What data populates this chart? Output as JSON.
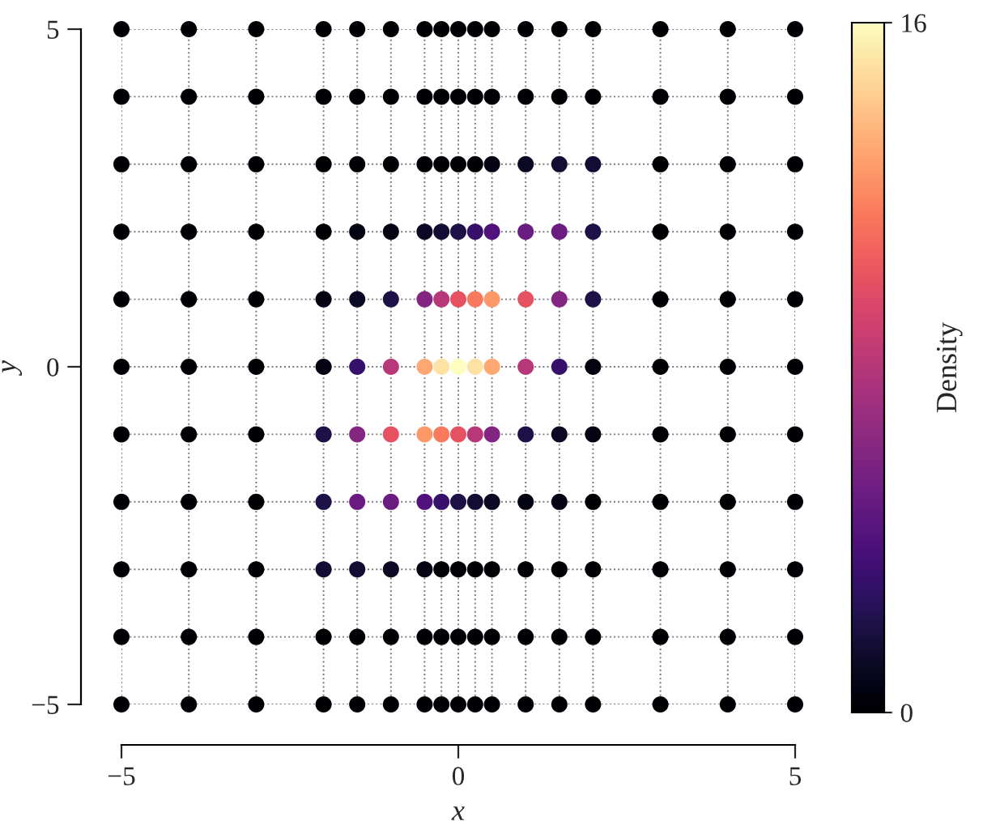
{
  "chart_data": {
    "type": "scatter",
    "xlabel": "x",
    "ylabel": "y",
    "clabel": "Density",
    "xlim": [
      -5,
      5
    ],
    "ylim": [
      -5,
      5
    ],
    "xticks": [
      {
        "value": -5,
        "label": "−5"
      },
      0,
      5
    ],
    "yticks": [
      {
        "value": -5,
        "label": "−5"
      },
      0,
      5
    ],
    "clim": [
      0,
      16
    ],
    "cticks": [
      0,
      16
    ],
    "grid": true,
    "marker": "circle",
    "x": [
      -5,
      -4,
      -3,
      -2,
      -1.5,
      -1,
      -0.5,
      -0.25,
      0,
      0.25,
      0.5,
      1,
      1.5,
      2,
      3,
      4,
      5,
      -5,
      -4,
      -3,
      -2,
      -1.5,
      -1,
      -0.5,
      -0.25,
      0,
      0.25,
      0.5,
      1,
      1.5,
      2,
      3,
      4,
      5,
      -5,
      -4,
      -3,
      -2,
      -1.5,
      -1,
      -0.5,
      -0.25,
      0,
      0.25,
      0.5,
      1,
      1.5,
      2,
      3,
      4,
      5,
      -5,
      -4,
      -3,
      -2,
      -1.5,
      -1,
      -0.5,
      -0.25,
      0,
      0.25,
      0.5,
      1,
      1.5,
      2,
      3,
      4,
      5,
      -5,
      -4,
      -3,
      -2,
      -1.5,
      -1,
      -0.5,
      -0.25,
      0,
      0.25,
      0.5,
      1,
      1.5,
      2,
      3,
      4,
      5,
      -5,
      -4,
      -3,
      -2,
      -1.5,
      -1,
      -0.5,
      -0.25,
      0,
      0.25,
      0.5,
      1,
      1.5,
      2,
      3,
      4,
      5,
      -5,
      -4,
      -3,
      -2,
      -1.5,
      -1,
      -0.5,
      -0.25,
      0,
      0.25,
      0.5,
      1,
      1.5,
      2,
      3,
      4,
      5,
      -5,
      -4,
      -3,
      -2,
      -1.5,
      -1,
      -0.5,
      -0.25,
      0,
      0.25,
      0.5,
      1,
      1.5,
      2,
      3,
      4,
      5,
      -5,
      -4,
      -3,
      -2,
      -1.5,
      -1,
      -0.5,
      -0.25,
      0,
      0.25,
      0.5,
      1,
      1.5,
      2,
      3,
      4,
      5,
      -5,
      -4,
      -3,
      -2,
      -1.5,
      -1,
      -0.5,
      -0.25,
      0,
      0.25,
      0.5,
      1,
      1.5,
      2,
      3,
      4,
      5,
      -5,
      -4,
      -3,
      -2,
      -1.5,
      -1,
      -0.5,
      -0.25,
      0,
      0.25,
      0.5,
      1,
      1.5,
      2,
      3,
      4,
      5
    ],
    "values": [
      5,
      5,
      5,
      5,
      5,
      5,
      5,
      5,
      5,
      5,
      5,
      5,
      5,
      5,
      5,
      5,
      5,
      4,
      4,
      4,
      4,
      4,
      4,
      4,
      4,
      4,
      4,
      4,
      4,
      4,
      4,
      4,
      4,
      4,
      3,
      3,
      3,
      3,
      3,
      3,
      3,
      3,
      3,
      3,
      3,
      3,
      3,
      3,
      3,
      3,
      3,
      2,
      2,
      2,
      2,
      2,
      2,
      2,
      2,
      2,
      2,
      2,
      2,
      2,
      2,
      2,
      2,
      2,
      1,
      1,
      1,
      1,
      1,
      1,
      1,
      1,
      1,
      1,
      1,
      1,
      1,
      1,
      1,
      1,
      1,
      0,
      0,
      0,
      0,
      0,
      0,
      0,
      0,
      0,
      0,
      0,
      0,
      0,
      0,
      0,
      0,
      0,
      -1,
      -1,
      -1,
      -1,
      -1,
      -1,
      -1,
      -1,
      -1,
      -1,
      -1,
      -1,
      -1,
      -1,
      -1,
      -1,
      -1,
      -2,
      -2,
      -2,
      -2,
      -2,
      -2,
      -2,
      -2,
      -2,
      -2,
      -2,
      -2,
      -2,
      -2,
      -2,
      -2,
      -2,
      -3,
      -3,
      -3,
      -3,
      -3,
      -3,
      -3,
      -3,
      -3,
      -3,
      -3,
      -3,
      -3,
      -3,
      -3,
      -3,
      -3,
      -4,
      -4,
      -4,
      -4,
      -4,
      -4,
      -4,
      -4,
      -4,
      -4,
      -4,
      -4,
      -4,
      -4,
      -4,
      -4,
      -4,
      -5,
      -5,
      -5,
      -5,
      -5,
      -5,
      -5,
      -5,
      -5,
      -5,
      -5,
      -5,
      -5,
      -5,
      -5,
      -5,
      -5
    ],
    "cvalues": [
      0,
      0,
      0,
      0,
      0,
      0,
      0,
      0,
      0,
      0,
      0,
      0,
      0,
      0,
      0,
      0,
      0,
      0,
      0,
      0,
      0,
      0,
      0,
      0,
      0,
      0,
      0,
      0,
      0,
      0,
      0,
      0,
      0,
      0,
      0,
      0,
      0,
      0,
      0,
      0,
      0,
      0,
      0,
      0,
      0.5,
      1,
      1.5,
      1.5,
      0,
      0,
      0,
      0,
      0,
      0,
      0,
      0.5,
      0.5,
      1,
      1.5,
      2,
      3,
      4,
      5,
      5,
      2,
      0,
      0,
      0,
      0,
      0,
      0,
      0.5,
      1,
      2,
      6,
      8,
      10,
      11.5,
      12.5,
      10,
      6,
      2,
      0,
      0,
      0,
      0,
      0,
      0,
      0.5,
      3,
      8,
      13,
      15,
      16,
      15,
      13,
      8,
      3,
      0.5,
      0,
      0,
      0,
      0,
      0,
      0,
      2,
      6,
      10,
      12.5,
      11.5,
      10,
      8,
      6,
      2,
      1,
      0.5,
      0,
      0,
      0,
      0,
      0,
      0,
      2,
      5,
      5,
      4,
      3,
      2,
      1.5,
      1,
      0.5,
      0.5,
      0,
      0,
      0,
      0,
      0,
      0,
      0,
      1.5,
      1.5,
      1,
      0.5,
      0,
      0,
      0,
      0,
      0,
      0,
      0,
      0,
      0,
      0,
      0,
      0,
      0,
      0,
      0,
      0,
      0,
      0,
      0,
      0,
      0,
      0,
      0,
      0,
      0,
      0,
      0,
      0,
      0,
      0,
      0,
      0,
      0,
      0,
      0,
      0,
      0,
      0,
      0,
      0,
      0,
      0,
      0,
      0
    ]
  }
}
